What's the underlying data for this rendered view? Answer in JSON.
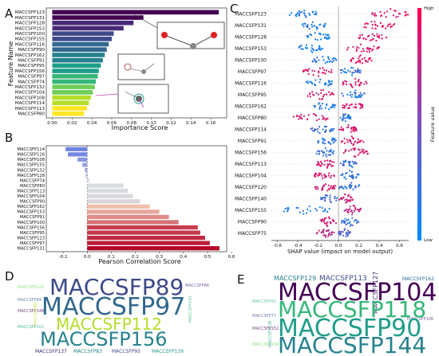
{
  "panels": {
    "a": "A",
    "b": "B",
    "c": "C",
    "d": "D",
    "e": "E"
  },
  "colors": {
    "shap_high": "#ff0052",
    "shap_low": "#008bfb",
    "viridis": [
      "#440154",
      "#482878",
      "#3e4989",
      "#31688e",
      "#26828e",
      "#1f9e89",
      "#35b779",
      "#6ece58",
      "#b5de2b",
      "#fde725"
    ],
    "coolwarm_neg": "#6a7fe0",
    "coolwarm_pos": "#b40426"
  },
  "chart_data": [
    {
      "id": "importance",
      "type": "bar",
      "orientation": "horizontal",
      "categories": [
        "MACCSFP123",
        "MACCSFP131",
        "MACCSFP128",
        "MACCSFP153",
        "MACCSFP100",
        "MACCSFP155",
        "MACCSFP116",
        "MACCSFP90",
        "MACCSFP162",
        "MACCSFP91",
        "MACCSFP95",
        "MACCSFP156",
        "MACCSFP97",
        "MACCSFP74",
        "MACCSFP132",
        "MACCSFP104",
        "MACCSFP108",
        "MACCSFP114",
        "MACCSFP113",
        "MACCSFP80"
      ],
      "values": [
        0.168,
        0.092,
        0.082,
        0.072,
        0.062,
        0.06,
        0.057,
        0.055,
        0.053,
        0.051,
        0.049,
        0.047,
        0.046,
        0.044,
        0.043,
        0.041,
        0.039,
        0.037,
        0.035,
        0.032
      ],
      "xlabel": "Importance Score",
      "ylabel": "Feature Name",
      "xticks": [
        "0.00",
        "0.02",
        "0.04",
        "0.06",
        "0.08",
        "0.10",
        "0.12",
        "0.14",
        "0.16"
      ],
      "xlim": [
        -0.006,
        0.176
      ]
    },
    {
      "id": "correlation",
      "type": "bar",
      "orientation": "horizontal",
      "categories": [
        "MACCSFP114",
        "MACCSFP116",
        "MACCSFP108",
        "MACCSFP155",
        "MACCSFP132",
        "MACCSFP128",
        "MACCSFP74",
        "MACCSFP80",
        "MACCSFP113",
        "MACCSFP104",
        "MACCSFP90",
        "MACCSFP162",
        "MACCSFP153",
        "MACCSFP91",
        "MACCSFP100",
        "MACCSFP156",
        "MACCSFP95",
        "MACCSFP123",
        "MACCSFP97",
        "MACCSFP131"
      ],
      "values": [
        -0.09,
        -0.08,
        -0.04,
        -0.02,
        -0.01,
        -0.005,
        0.01,
        0.15,
        0.17,
        0.19,
        0.22,
        0.26,
        0.3,
        0.34,
        0.38,
        0.46,
        0.47,
        0.49,
        0.51,
        0.55
      ],
      "xlabel": "Pearson Correlation Score",
      "xticks": [
        "-0.1",
        "0.0",
        "0.1",
        "0.2",
        "0.3",
        "0.4",
        "0.5",
        "0.6"
      ],
      "xlim": [
        -0.17,
        0.58
      ]
    },
    {
      "id": "shap",
      "type": "scatter",
      "features": [
        "MACCSFP123",
        "MACCSFP131",
        "MACCSFP128",
        "MACCSFP153",
        "MACCSFP100",
        "MACCSFP97",
        "MACCSFP116",
        "MACCSFP95",
        "MACCSFP162",
        "MACCSFP80",
        "MACCSFP114",
        "MACCSFP91",
        "MACCSFP156",
        "MACCSFP113",
        "MACCSFP104",
        "MACCSFP120",
        "MACCSFP140",
        "MACCSFP155",
        "MACCSFP90",
        "MACCSFP75"
      ],
      "clusters": [
        [
          [
            -0.48,
            -0.2,
            0.1
          ],
          [
            0.33,
            0.7,
            0.9
          ]
        ],
        [
          [
            -0.36,
            -0.12,
            0.1
          ],
          [
            0.22,
            0.55,
            0.9
          ]
        ],
        [
          [
            -0.33,
            -0.08,
            0.1
          ],
          [
            0.2,
            0.48,
            0.9
          ]
        ],
        [
          [
            -0.42,
            -0.14,
            0.1
          ],
          [
            0.08,
            0.4,
            0.9
          ]
        ],
        [
          [
            -0.26,
            -0.02,
            0.15
          ],
          [
            0.12,
            0.33,
            0.9
          ]
        ],
        [
          [
            -0.35,
            -0.05,
            0.9
          ],
          [
            0.02,
            0.22,
            0.2
          ]
        ],
        [
          [
            -0.33,
            -0.05,
            0.1
          ],
          [
            0.04,
            0.28,
            0.85
          ]
        ],
        [
          [
            -0.32,
            -0.02,
            0.85
          ],
          [
            0.03,
            0.26,
            0.15
          ]
        ],
        [
          [
            -0.24,
            -0.03,
            0.15
          ],
          [
            0.04,
            0.24,
            0.85
          ]
        ],
        [
          [
            -0.45,
            -0.08,
            0.85
          ],
          [
            0.02,
            0.12,
            0.15
          ]
        ],
        [
          [
            -0.28,
            -0.04,
            0.2
          ],
          [
            0.01,
            0.18,
            0.8
          ]
        ],
        [
          [
            -0.22,
            -0.02,
            0.15
          ],
          [
            0.02,
            0.25,
            0.85
          ]
        ],
        [
          [
            -0.22,
            -0.03,
            0.2
          ],
          [
            0.03,
            0.3,
            0.85
          ]
        ],
        [
          [
            -0.22,
            -0.03,
            0.85
          ],
          [
            0.02,
            0.18,
            0.2
          ]
        ],
        [
          [
            -0.24,
            -0.04,
            0.85
          ],
          [
            0.02,
            0.2,
            0.15
          ]
        ],
        [
          [
            -0.24,
            -0.03,
            0.8
          ],
          [
            0.0,
            0.22,
            0.2
          ]
        ],
        [
          [
            -0.18,
            -0.01,
            0.25
          ],
          [
            0.0,
            0.15,
            0.75
          ]
        ],
        [
          [
            -0.54,
            -0.08,
            0.1
          ],
          [
            0.05,
            0.22,
            0.75
          ]
        ],
        [
          [
            -0.18,
            -0.02,
            0.8
          ],
          [
            0.03,
            0.2,
            0.2
          ]
        ],
        [
          [
            -0.22,
            -0.04,
            0.7
          ],
          [
            0.0,
            0.12,
            0.3
          ]
        ]
      ],
      "xlabel": "SHAP value (impact on model output)",
      "xticks": [
        "-0.6",
        "-0.4",
        "-0.2",
        "0.0",
        "0.2",
        "0.4",
        "0.6"
      ],
      "xlim": [
        -0.66,
        0.69
      ],
      "colorbar_label": "Feature value",
      "colorbar_high": "High",
      "colorbar_low": "Low"
    }
  ],
  "wordclouds": {
    "d": {
      "big": [
        "MACCSFP89",
        "MACCSFP97",
        "MACCSFP112",
        "MACCSFP156"
      ],
      "small": [
        "MACCSFP137",
        "MACCSFP83",
        "MACCSFP95",
        "MACCSFP139"
      ]
    },
    "e": {
      "big": [
        "MACCSFP104",
        "MACCSFP118",
        "MACCSFP90",
        "MACCSFP144"
      ],
      "small": [
        "MACCSFP129",
        "MACCSFP113",
        "MACCSFP127",
        "MACCSFP162"
      ]
    }
  }
}
